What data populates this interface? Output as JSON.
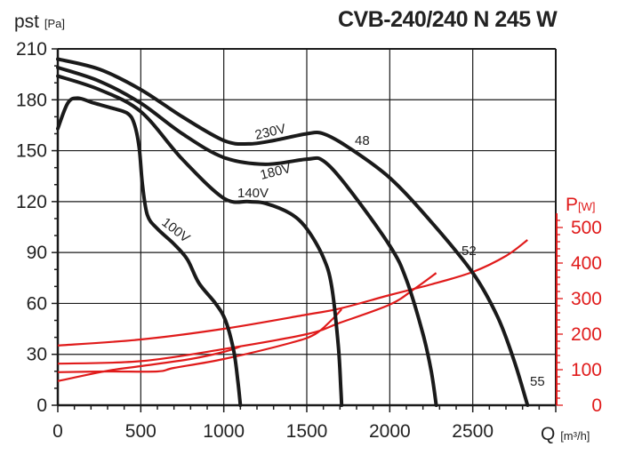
{
  "chart_data": {
    "type": "line",
    "title": "CVB-240/240 N 245 W",
    "xlabel": "Q",
    "xunit": "[m³/h]",
    "ylabel": "pst",
    "yunit": "[Pa]",
    "y2label": "P",
    "y2unit": "[W]",
    "xlim": [
      0,
      3000
    ],
    "ylim": [
      0,
      210
    ],
    "y2lim": [
      0,
      500
    ],
    "xticks": [
      0,
      500,
      1000,
      1500,
      2000,
      2500
    ],
    "yticks": [
      0,
      30,
      60,
      90,
      120,
      150,
      180,
      210
    ],
    "y2ticks": [
      0,
      100,
      200,
      300,
      400,
      500
    ],
    "grid": true,
    "colors": {
      "pressure": "#1a1a1a",
      "power": "#e01b1b"
    },
    "pressure_series": [
      {
        "name": "230V",
        "points": [
          [
            0,
            204
          ],
          [
            250,
            198
          ],
          [
            500,
            186
          ],
          [
            750,
            170
          ],
          [
            1000,
            156
          ],
          [
            1150,
            154
          ],
          [
            1300,
            156
          ],
          [
            1500,
            160
          ],
          [
            1600,
            160
          ],
          [
            1750,
            152
          ],
          [
            2000,
            134
          ],
          [
            2250,
            108
          ],
          [
            2500,
            78
          ],
          [
            2650,
            52
          ],
          [
            2750,
            26
          ],
          [
            2830,
            0
          ]
        ]
      },
      {
        "name": "180V",
        "points": [
          [
            0,
            199
          ],
          [
            250,
            191
          ],
          [
            500,
            178
          ],
          [
            750,
            160
          ],
          [
            1000,
            146
          ],
          [
            1250,
            142
          ],
          [
            1500,
            145
          ],
          [
            1600,
            144
          ],
          [
            1750,
            128
          ],
          [
            2000,
            94
          ],
          [
            2100,
            74
          ],
          [
            2200,
            42
          ],
          [
            2250,
            20
          ],
          [
            2280,
            0
          ]
        ]
      },
      {
        "name": "140V",
        "points": [
          [
            0,
            194
          ],
          [
            250,
            186
          ],
          [
            500,
            173
          ],
          [
            750,
            145
          ],
          [
            1000,
            122
          ],
          [
            1150,
            120
          ],
          [
            1250,
            119
          ],
          [
            1400,
            113
          ],
          [
            1500,
            104
          ],
          [
            1600,
            87
          ],
          [
            1650,
            70
          ],
          [
            1690,
            35
          ],
          [
            1705,
            10
          ],
          [
            1710,
            0
          ]
        ]
      },
      {
        "name": "100V",
        "points": [
          [
            0,
            163
          ],
          [
            60,
            178
          ],
          [
            120,
            181
          ],
          [
            220,
            178
          ],
          [
            330,
            175
          ],
          [
            420,
            172
          ],
          [
            460,
            166
          ],
          [
            490,
            152
          ],
          [
            510,
            130
          ],
          [
            540,
            112
          ],
          [
            600,
            104
          ],
          [
            700,
            95
          ],
          [
            780,
            86
          ],
          [
            850,
            72
          ],
          [
            950,
            60
          ],
          [
            1010,
            50
          ],
          [
            1060,
            32
          ],
          [
            1085,
            14
          ],
          [
            1100,
            0
          ]
        ]
      }
    ],
    "power_series": [
      {
        "name": "230V",
        "points": [
          [
            0,
            168
          ],
          [
            500,
            185
          ],
          [
            1000,
            215
          ],
          [
            1500,
            255
          ],
          [
            1700,
            272
          ],
          [
            2000,
            310
          ],
          [
            2250,
            340
          ],
          [
            2500,
            375
          ],
          [
            2700,
            420
          ],
          [
            2830,
            465
          ]
        ]
      },
      {
        "name": "180V",
        "points": [
          [
            0,
            117
          ],
          [
            500,
            124
          ],
          [
            1000,
            158
          ],
          [
            1500,
            200
          ],
          [
            1700,
            232
          ],
          [
            2000,
            283
          ],
          [
            2150,
            328
          ],
          [
            2280,
            372
          ]
        ]
      },
      {
        "name": "140V",
        "points": [
          [
            0,
            93
          ],
          [
            300,
            95
          ],
          [
            600,
            95
          ],
          [
            700,
            105
          ],
          [
            1000,
            130
          ],
          [
            1400,
            175
          ],
          [
            1550,
            200
          ],
          [
            1650,
            240
          ],
          [
            1710,
            270
          ]
        ]
      },
      {
        "name": "100V",
        "points": [
          [
            0,
            68
          ],
          [
            300,
            97
          ],
          [
            500,
            110
          ],
          [
            800,
            130
          ],
          [
            1000,
            150
          ],
          [
            1100,
            165
          ]
        ]
      }
    ],
    "annotations": [
      {
        "text": "230V"
      },
      {
        "text": "180V"
      },
      {
        "text": "140V"
      },
      {
        "text": "100V"
      },
      {
        "text": "48"
      },
      {
        "text": "52"
      },
      {
        "text": "55"
      }
    ]
  }
}
